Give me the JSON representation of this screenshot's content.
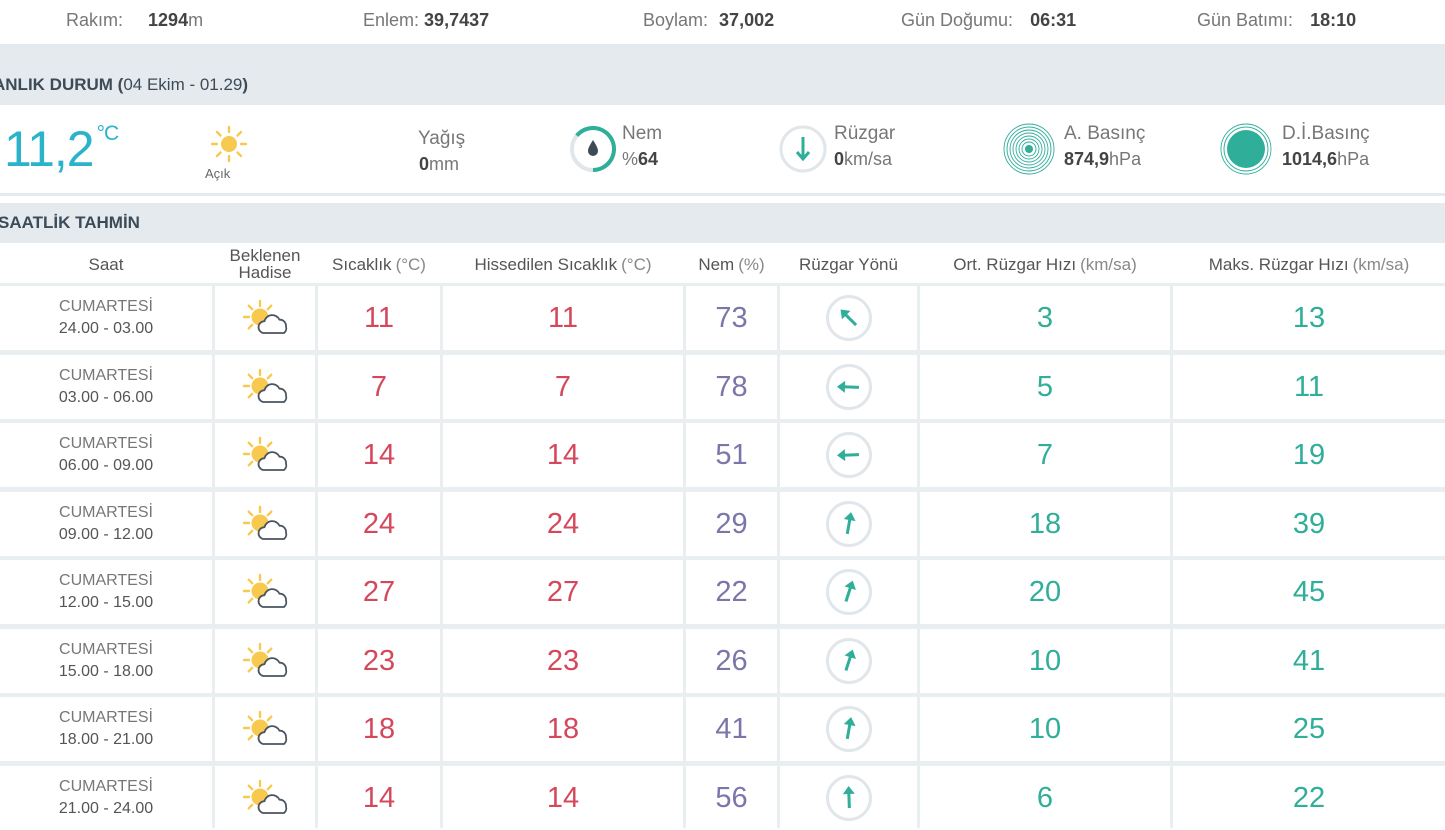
{
  "topbar": {
    "altitude_label": "Rakım:",
    "altitude_value": "1294",
    "altitude_unit": "m",
    "lat_label": "Enlem:",
    "lat_value": "39,7437",
    "lon_label": "Boylam:",
    "lon_value": "37,002",
    "sunrise_label": "Gün Doğumu:",
    "sunrise_value": "06:31",
    "sunset_label": "Gün Batımı:",
    "sunset_value": "18:10"
  },
  "current": {
    "section_title": "ANLIK DURUM",
    "section_title_visible": "ANLIK DURUM (",
    "section_date": "04 Ekim - 01.29",
    "section_close": ")",
    "temperature": "11,2",
    "temp_unit": "°C",
    "condition": "Açık",
    "condition_icon": "sun-icon",
    "rain_label": "Yağış",
    "rain_value": "0",
    "rain_unit": "mm",
    "humidity_label": "Nem",
    "humidity_prefix": "%",
    "humidity_value": "64",
    "humidity_fraction": 0.64,
    "wind_label": "Rüzgar",
    "wind_value": "0",
    "wind_unit": "km/sa",
    "pressure_label": "A. Basınç",
    "pressure_value": "874,9",
    "pressure_unit": "hPa",
    "sea_pressure_label": "D.İ.Basınç",
    "sea_pressure_value": "1014,6",
    "sea_pressure_unit": "hPa"
  },
  "hourly": {
    "section_title": "SAATLİK TAHMİN",
    "headers": {
      "time": "Saat",
      "event_line1": "Beklenen",
      "event_line2": "Hadise",
      "temp": "Sıcaklık",
      "temp_unit": "(°C)",
      "feels": "Hissedilen Sıcaklık",
      "feels_unit": "(°C)",
      "humidity": "Nem",
      "humidity_unit": "(%)",
      "wind_dir": "Rüzgar Yönü",
      "avg_wind": "Ort. Rüzgar Hızı",
      "avg_wind_unit": "(km/sa)",
      "max_wind": "Maks. Rüzgar Hızı",
      "max_wind_unit": "(km/sa)"
    },
    "colors": {
      "temp": "#d5485c",
      "humidity": "#7b76aa",
      "wind": "#2fae9a",
      "current_temp": "#2ab4c9"
    },
    "rows": [
      {
        "day": "CUMARTESİ",
        "range": "24.00 - 03.00",
        "icon": "partly-cloudy-icon",
        "temp": "11",
        "feels": "11",
        "humidity": "73",
        "wind_dir_deg": 315,
        "avg_wind": "3",
        "max_wind": "13"
      },
      {
        "day": "CUMARTESİ",
        "range": "03.00 - 06.00",
        "icon": "partly-cloudy-icon",
        "temp": "7",
        "feels": "7",
        "humidity": "78",
        "wind_dir_deg": 272,
        "avg_wind": "5",
        "max_wind": "11"
      },
      {
        "day": "CUMARTESİ",
        "range": "06.00 - 09.00",
        "icon": "partly-cloudy-icon",
        "temp": "14",
        "feels": "14",
        "humidity": "51",
        "wind_dir_deg": 268,
        "avg_wind": "7",
        "max_wind": "19"
      },
      {
        "day": "CUMARTESİ",
        "range": "09.00 - 12.00",
        "icon": "partly-cloudy-icon",
        "temp": "24",
        "feels": "24",
        "humidity": "29",
        "wind_dir_deg": 10,
        "avg_wind": "18",
        "max_wind": "39"
      },
      {
        "day": "CUMARTESİ",
        "range": "12.00 - 15.00",
        "icon": "partly-cloudy-icon",
        "temp": "27",
        "feels": "27",
        "humidity": "22",
        "wind_dir_deg": 18,
        "avg_wind": "20",
        "max_wind": "45"
      },
      {
        "day": "CUMARTESİ",
        "range": "15.00 - 18.00",
        "icon": "partly-cloudy-icon",
        "temp": "23",
        "feels": "23",
        "humidity": "26",
        "wind_dir_deg": 18,
        "avg_wind": "10",
        "max_wind": "41"
      },
      {
        "day": "CUMARTESİ",
        "range": "18.00 - 21.00",
        "icon": "partly-cloudy-icon",
        "temp": "18",
        "feels": "18",
        "humidity": "41",
        "wind_dir_deg": 10,
        "avg_wind": "10",
        "max_wind": "25"
      },
      {
        "day": "CUMARTESİ",
        "range": "21.00 - 24.00",
        "icon": "partly-cloudy-icon",
        "temp": "14",
        "feels": "14",
        "humidity": "56",
        "wind_dir_deg": 358,
        "avg_wind": "6",
        "max_wind": "22"
      }
    ]
  }
}
